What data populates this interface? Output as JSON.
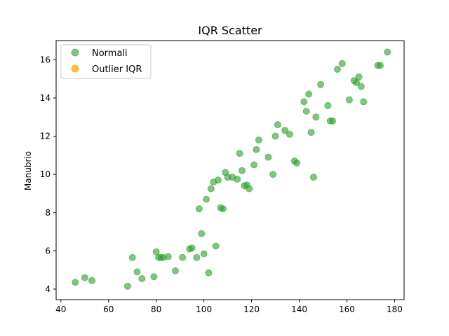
{
  "chart_data": {
    "type": "scatter",
    "title": "IQR Scatter",
    "xlabel": "",
    "ylabel": "Manubrio",
    "xlim": [
      38,
      184
    ],
    "ylim": [
      3.45,
      17.0
    ],
    "xticks": [
      40,
      60,
      80,
      100,
      120,
      140,
      160,
      180
    ],
    "yticks": [
      4,
      6,
      8,
      10,
      12,
      14,
      16
    ],
    "grid": false,
    "legend_position": "top-left",
    "series": [
      {
        "name": "Normali",
        "color": "#2ca02c",
        "points": [
          [
            46,
            4.35
          ],
          [
            50,
            4.6
          ],
          [
            53,
            4.45
          ],
          [
            68,
            4.15
          ],
          [
            70,
            5.65
          ],
          [
            72,
            4.9
          ],
          [
            74,
            4.55
          ],
          [
            79,
            4.65
          ],
          [
            80,
            5.95
          ],
          [
            81,
            5.65
          ],
          [
            82,
            5.65
          ],
          [
            83,
            5.65
          ],
          [
            85,
            5.7
          ],
          [
            88,
            4.95
          ],
          [
            91,
            5.65
          ],
          [
            94,
            6.1
          ],
          [
            95,
            6.15
          ],
          [
            97,
            5.65
          ],
          [
            98,
            8.2
          ],
          [
            99,
            6.9
          ],
          [
            100,
            5.85
          ],
          [
            101,
            8.7
          ],
          [
            102,
            4.85
          ],
          [
            103,
            9.25
          ],
          [
            104,
            9.6
          ],
          [
            105,
            6.25
          ],
          [
            106,
            9.7
          ],
          [
            107,
            8.25
          ],
          [
            108,
            8.2
          ],
          [
            109,
            10.1
          ],
          [
            110,
            9.85
          ],
          [
            112,
            9.85
          ],
          [
            114,
            9.75
          ],
          [
            115,
            11.1
          ],
          [
            116,
            10.2
          ],
          [
            117,
            9.4
          ],
          [
            118,
            9.45
          ],
          [
            119,
            9.25
          ],
          [
            121,
            10.5
          ],
          [
            122,
            11.3
          ],
          [
            123,
            11.8
          ],
          [
            127,
            10.9
          ],
          [
            129,
            10.0
          ],
          [
            130,
            12.0
          ],
          [
            131,
            12.6
          ],
          [
            134,
            12.3
          ],
          [
            136,
            12.1
          ],
          [
            138,
            10.7
          ],
          [
            139,
            10.6
          ],
          [
            142,
            13.8
          ],
          [
            143,
            13.3
          ],
          [
            144,
            14.2
          ],
          [
            145,
            12.2
          ],
          [
            146,
            9.85
          ],
          [
            147,
            13.0
          ],
          [
            149,
            14.7
          ],
          [
            152,
            13.6
          ],
          [
            153,
            12.8
          ],
          [
            154,
            12.8
          ],
          [
            156,
            15.5
          ],
          [
            158,
            15.8
          ],
          [
            161,
            13.9
          ],
          [
            163,
            14.9
          ],
          [
            164,
            14.8
          ],
          [
            165,
            15.1
          ],
          [
            166,
            14.6
          ],
          [
            167,
            13.8
          ],
          [
            173,
            15.7
          ],
          [
            174,
            15.7
          ],
          [
            177,
            16.4
          ]
        ]
      },
      {
        "name": "Outlier IQR",
        "color": "#ffa500",
        "points": []
      }
    ]
  }
}
